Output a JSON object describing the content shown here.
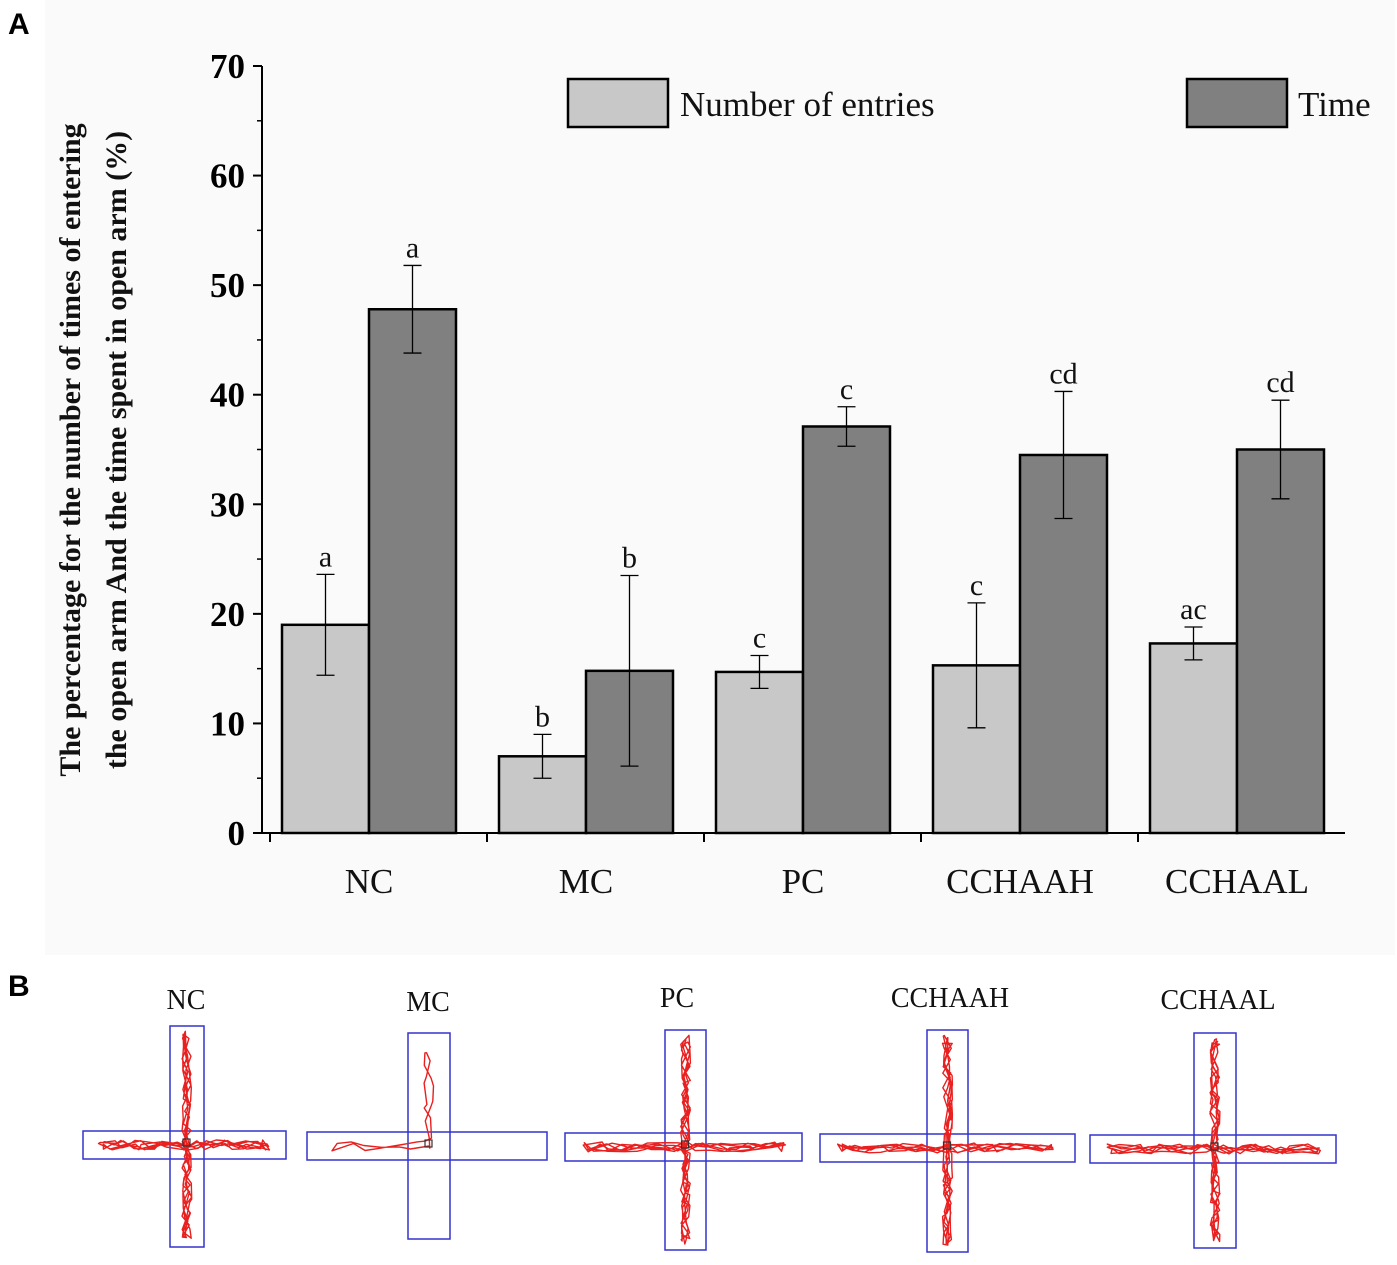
{
  "panels": {
    "a_label": "A",
    "b_label": "B"
  },
  "chart_data": {
    "type": "bar",
    "ylabel_line1": "The percentage for the number of times of entering",
    "ylabel_line2": "the open arm And the time spent in open arm  (%)",
    "xlabel": "",
    "ylim": [
      0,
      70
    ],
    "yticks": [
      0,
      10,
      20,
      30,
      40,
      50,
      60,
      70
    ],
    "grid": false,
    "legend_position": "top",
    "categories": [
      "NC",
      "MC",
      "PC",
      "CCHAAH",
      "CCHAAL"
    ],
    "series": [
      {
        "name": "Number of entries",
        "color": "#c8c8c8",
        "values": [
          19.0,
          7.0,
          14.7,
          15.3,
          17.3
        ],
        "errors": [
          4.6,
          2.0,
          1.5,
          5.7,
          1.5
        ],
        "labels": [
          "a",
          "b",
          "c",
          "c",
          "ac"
        ]
      },
      {
        "name": "Time",
        "color": "#808080",
        "values": [
          47.8,
          14.8,
          37.1,
          34.5,
          35.0
        ],
        "errors": [
          4.0,
          8.7,
          1.8,
          5.8,
          4.5
        ],
        "labels": [
          "a",
          "b",
          "c",
          "cd",
          "cd"
        ]
      }
    ]
  },
  "maze": {
    "groups": [
      "NC",
      "MC",
      "PC",
      "CCHAAH",
      "CCHAAL"
    ],
    "arm_color": "#3333cc",
    "track_color": "#e82020"
  }
}
